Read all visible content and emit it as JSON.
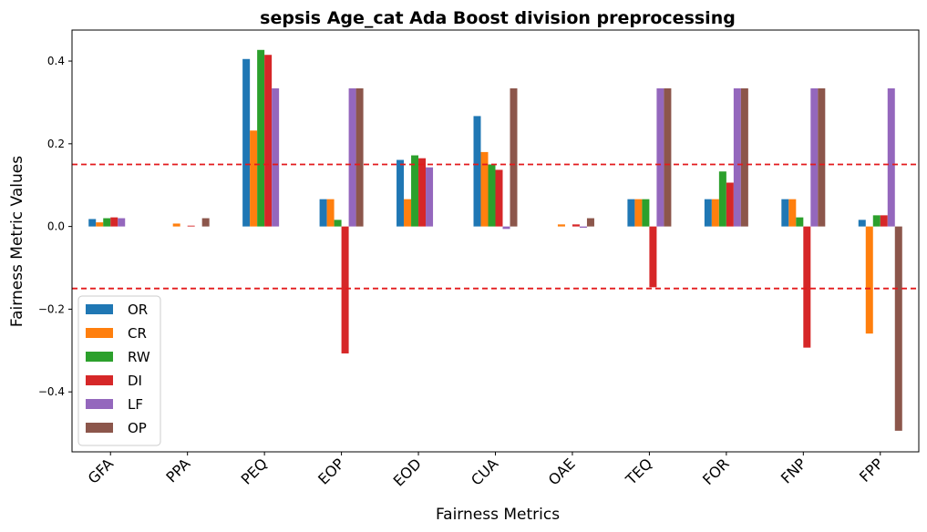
{
  "chart_data": {
    "type": "bar",
    "title": "sepsis Age_cat Ada Boost division preprocessing",
    "xlabel": "Fairness Metrics",
    "ylabel": "Fairness Metric Values",
    "categories": [
      "GFA",
      "PPA",
      "PEQ",
      "EOP",
      "EOD",
      "CUA",
      "OAE",
      "TEQ",
      "FOR",
      "FNP",
      "FPP"
    ],
    "ylim": [
      -0.545,
      0.475
    ],
    "yticks": [
      -0.4,
      -0.2,
      0.0,
      0.2,
      0.4
    ],
    "ytick_labels": [
      "−0.4",
      "−0.2",
      "0.0",
      "0.2",
      "0.4"
    ],
    "threshold_lines": [
      0.15,
      -0.15
    ],
    "threshold_color": "#e31a1c",
    "legend_position": "lower-left",
    "series": [
      {
        "name": "OR",
        "color": "#1f77b4",
        "values": [
          0.018,
          0.0,
          0.405,
          0.066,
          0.161,
          0.267,
          0.0,
          0.066,
          0.066,
          0.066,
          0.016
        ]
      },
      {
        "name": "CR",
        "color": "#ff7f0e",
        "values": [
          0.01,
          0.007,
          0.232,
          0.066,
          0.066,
          0.18,
          0.005,
          0.066,
          0.066,
          0.066,
          -0.259
        ]
      },
      {
        "name": "RW",
        "color": "#2ca02c",
        "values": [
          0.02,
          0.0,
          0.427,
          0.016,
          0.172,
          0.15,
          0.0,
          0.066,
          0.133,
          0.022,
          0.027
        ]
      },
      {
        "name": "DI",
        "color": "#d62728",
        "values": [
          0.022,
          0.002,
          0.415,
          -0.307,
          0.165,
          0.137,
          0.005,
          -0.147,
          0.106,
          -0.293,
          0.027
        ]
      },
      {
        "name": "LF",
        "color": "#9467bd",
        "values": [
          0.02,
          0.0,
          0.334,
          0.334,
          0.143,
          -0.006,
          -0.003,
          0.334,
          0.334,
          0.334,
          0.334
        ]
      },
      {
        "name": "OP",
        "color": "#8c564b",
        "values": [
          0.0,
          0.02,
          0.0,
          0.334,
          0.0,
          0.334,
          0.02,
          0.334,
          0.334,
          0.334,
          -0.494
        ]
      }
    ]
  }
}
